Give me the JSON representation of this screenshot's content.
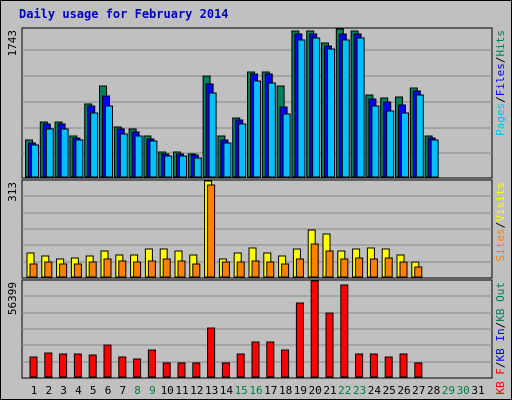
{
  "title": "Daily usage for February 2014",
  "colors": {
    "background": "#c0c0c0",
    "hits": "#00805c",
    "files": "#0000ff",
    "pages": "#00c0ff",
    "visits": "#ffff00",
    "sites": "#ff8000",
    "kbytes": "#ff0000",
    "grid": "#888888",
    "day_normal": "#000000",
    "day_weekend": "#008040"
  },
  "chart_data": [
    {
      "type": "bar",
      "panel": "top",
      "ymax_label": "1743",
      "ymax": 1743,
      "ylabel_parts": [
        {
          "text": "Pages",
          "color": "#00c0ff"
        },
        {
          "text": "/",
          "color": "#000000"
        },
        {
          "text": "Files",
          "color": "#0000ff"
        },
        {
          "text": "/",
          "color": "#000000"
        },
        {
          "text": "Hits",
          "color": "#00805c"
        }
      ],
      "categories": [
        "1",
        "2",
        "3",
        "4",
        "5",
        "6",
        "7",
        "8",
        "9",
        "10",
        "11",
        "12",
        "13",
        "14",
        "15",
        "16",
        "17",
        "18",
        "19",
        "20",
        "21",
        "22",
        "23",
        "24",
        "25",
        "26",
        "27",
        "28",
        "29",
        "30",
        "31"
      ],
      "series": [
        {
          "name": "Hits",
          "values": [
            432,
            646,
            646,
            484,
            861,
            1076,
            592,
            560,
            484,
            296,
            296,
            269,
            1184,
            484,
            699,
            1237,
            1237,
            1076,
            1716,
            1716,
            1582,
            1743,
            1716,
            968,
            925,
            946,
            1044,
            484,
            null,
            null,
            null
          ]
        },
        {
          "name": "Files",
          "values": [
            405,
            619,
            619,
            459,
            834,
            951,
            565,
            534,
            450,
            274,
            274,
            254,
            1098,
            430,
            672,
            1210,
            1210,
            829,
            1689,
            1689,
            1543,
            1689,
            1689,
            914,
            882,
            844,
            1013,
            457,
            null,
            null,
            null
          ]
        },
        {
          "name": "Pages",
          "values": [
            378,
            565,
            565,
            432,
            753,
            834,
            512,
            484,
            423,
            248,
            248,
            228,
            992,
            403,
            619,
            1130,
            1103,
            741,
            1609,
            1636,
            1504,
            1609,
            1636,
            834,
            779,
            759,
            970,
            430,
            null,
            null,
            null
          ]
        }
      ]
    },
    {
      "type": "bar",
      "panel": "middle",
      "ymax_label": "313",
      "ymax": 313,
      "ylabel_parts": [
        {
          "text": "Sites",
          "color": "#ff8000"
        },
        {
          "text": "/",
          "color": "#000000"
        },
        {
          "text": "Visits",
          "color": "#ffff00"
        }
      ],
      "categories": [
        "1",
        "2",
        "3",
        "4",
        "5",
        "6",
        "7",
        "8",
        "9",
        "10",
        "11",
        "12",
        "13",
        "14",
        "15",
        "16",
        "17",
        "18",
        "19",
        "20",
        "21",
        "22",
        "23",
        "24",
        "25",
        "26",
        "27",
        "28",
        "29",
        "30",
        "31"
      ],
      "series": [
        {
          "name": "Visits",
          "values": [
            77,
            67,
            58,
            63,
            67,
            86,
            72,
            72,
            91,
            91,
            86,
            72,
            313,
            58,
            77,
            96,
            77,
            67,
            91,
            154,
            139,
            86,
            91,
            96,
            91,
            72,
            48,
            null,
            null,
            null,
            null
          ]
        },
        {
          "name": "Sites",
          "values": [
            43,
            48,
            43,
            43,
            48,
            58,
            53,
            48,
            53,
            58,
            53,
            43,
            299,
            48,
            48,
            53,
            48,
            43,
            58,
            106,
            86,
            58,
            63,
            58,
            63,
            48,
            34,
            null,
            null,
            null,
            null
          ]
        }
      ]
    },
    {
      "type": "bar",
      "panel": "bottom",
      "ymax_label": "56399",
      "ymax": 56399,
      "ylabel_parts": [
        {
          "text": "KB F",
          "color": "#ff0000"
        },
        {
          "text": "/",
          "color": "#000000"
        },
        {
          "text": "KB In",
          "color": "#0000ff"
        },
        {
          "text": "/",
          "color": "#000000"
        },
        {
          "text": "KB Out",
          "color": "#00805c"
        }
      ],
      "categories": [
        "1",
        "2",
        "3",
        "4",
        "5",
        "6",
        "7",
        "8",
        "9",
        "10",
        "11",
        "12",
        "13",
        "14",
        "15",
        "16",
        "17",
        "18",
        "19",
        "20",
        "21",
        "22",
        "23",
        "24",
        "25",
        "26",
        "27",
        "28",
        "29",
        "30",
        "31"
      ],
      "series": [
        {
          "name": "KB F",
          "values": [
            11630,
            14167,
            13534,
            13534,
            12687,
            19031,
            11630,
            10467,
            15859,
            8459,
            8459,
            8459,
            28549,
            8459,
            13534,
            20722,
            20722,
            15859,
            43712,
            56399,
            37368,
            53862,
            13534,
            13534,
            11630,
            13534,
            8459,
            null,
            null,
            null,
            null
          ]
        }
      ]
    }
  ],
  "days": [
    {
      "label": "1",
      "weekend": false
    },
    {
      "label": "2",
      "weekend": false
    },
    {
      "label": "3",
      "weekend": false
    },
    {
      "label": "4",
      "weekend": false
    },
    {
      "label": "5",
      "weekend": false
    },
    {
      "label": "6",
      "weekend": false
    },
    {
      "label": "7",
      "weekend": false
    },
    {
      "label": "8",
      "weekend": true
    },
    {
      "label": "9",
      "weekend": true
    },
    {
      "label": "10",
      "weekend": false
    },
    {
      "label": "11",
      "weekend": false
    },
    {
      "label": "12",
      "weekend": false
    },
    {
      "label": "13",
      "weekend": false
    },
    {
      "label": "14",
      "weekend": false
    },
    {
      "label": "15",
      "weekend": true
    },
    {
      "label": "16",
      "weekend": true
    },
    {
      "label": "17",
      "weekend": false
    },
    {
      "label": "18",
      "weekend": false
    },
    {
      "label": "19",
      "weekend": false
    },
    {
      "label": "20",
      "weekend": false
    },
    {
      "label": "21",
      "weekend": false
    },
    {
      "label": "22",
      "weekend": true
    },
    {
      "label": "23",
      "weekend": true
    },
    {
      "label": "24",
      "weekend": false
    },
    {
      "label": "25",
      "weekend": false
    },
    {
      "label": "26",
      "weekend": false
    },
    {
      "label": "27",
      "weekend": false
    },
    {
      "label": "28",
      "weekend": false
    },
    {
      "label": "29",
      "weekend": true
    },
    {
      "label": "30",
      "weekend": true
    },
    {
      "label": "31",
      "weekend": false
    }
  ]
}
